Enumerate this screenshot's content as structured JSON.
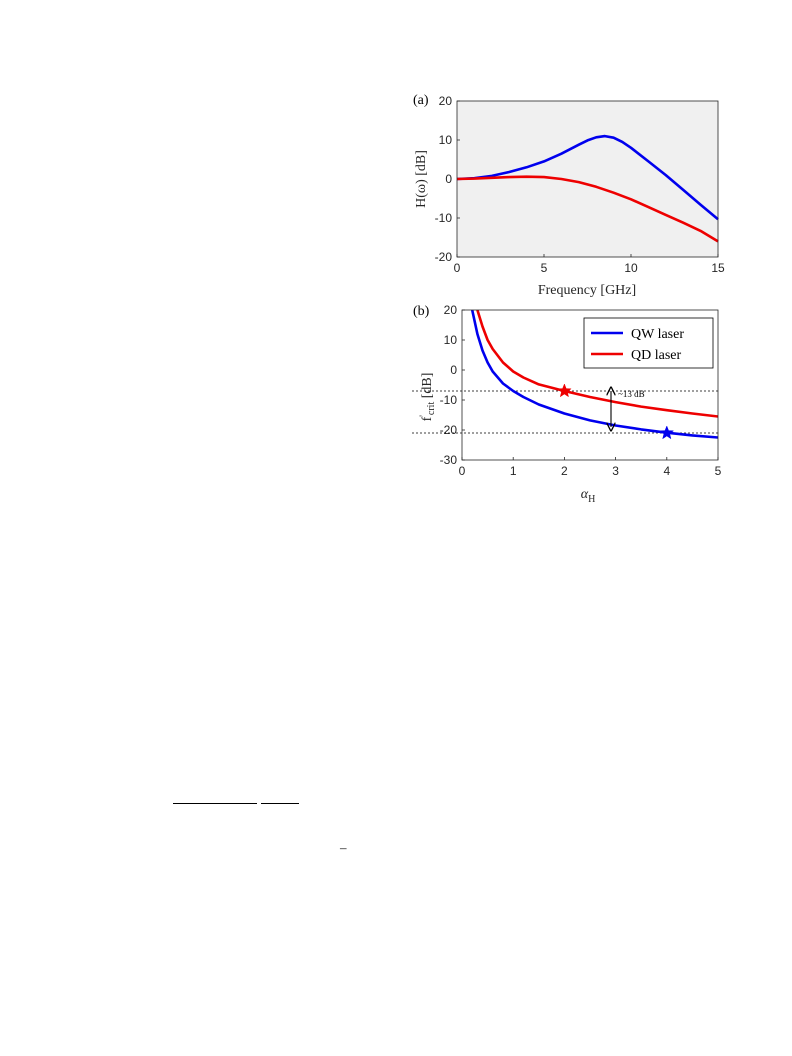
{
  "chart_data": [
    {
      "type": "line",
      "panel_label": "(a)",
      "xlabel": "Frequency [GHz]",
      "ylabel": "H(ω) [dB]",
      "xlim": [
        0,
        15
      ],
      "ylim": [
        -20,
        20
      ],
      "xticks": [
        0,
        5,
        10,
        15
      ],
      "yticks": [
        -20,
        -10,
        0,
        10,
        20
      ],
      "grid": false,
      "background": "#f0f0f0",
      "series": [
        {
          "color": "#0000ee",
          "x": [
            0,
            1,
            2,
            3,
            4,
            5,
            6,
            7,
            7.5,
            8,
            8.5,
            9,
            9.5,
            10,
            11,
            12,
            13,
            14,
            15
          ],
          "y": [
            0,
            0.2,
            0.8,
            1.8,
            3.0,
            4.5,
            6.5,
            8.8,
            9.9,
            10.7,
            11.0,
            10.6,
            9.5,
            8.0,
            4.5,
            1.0,
            -2.8,
            -6.6,
            -10.3
          ]
        },
        {
          "color": "#ee0000",
          "x": [
            0,
            1,
            2,
            3,
            4,
            5,
            6,
            7,
            8,
            9,
            10,
            11,
            12,
            13,
            14,
            15
          ],
          "y": [
            0,
            0.1,
            0.3,
            0.5,
            0.6,
            0.5,
            0,
            -0.8,
            -2.0,
            -3.5,
            -5.2,
            -7.2,
            -9.2,
            -11.2,
            -13.3,
            -16.0
          ]
        }
      ]
    },
    {
      "type": "line",
      "panel_label": "(b)",
      "xlabel": "αH",
      "ylabel": "f'crit [dB]",
      "xlim": [
        0,
        5
      ],
      "ylim": [
        -30,
        20
      ],
      "xticks": [
        0,
        1,
        2,
        3,
        4,
        5
      ],
      "yticks": [
        -30,
        -20,
        -10,
        0,
        10,
        20
      ],
      "grid": false,
      "legend": "top-right",
      "series": [
        {
          "name": "QW laser",
          "color": "#0000ee",
          "x": [
            0.2,
            0.3,
            0.4,
            0.5,
            0.6,
            0.8,
            1.0,
            1.2,
            1.5,
            2.0,
            2.5,
            3.0,
            3.5,
            4.0,
            4.5,
            5.0
          ],
          "y": [
            20,
            12,
            6.5,
            2.5,
            -0.5,
            -4.5,
            -7.0,
            -9.0,
            -11.5,
            -14.5,
            -16.8,
            -18.5,
            -19.8,
            -20.9,
            -21.8,
            -22.5
          ]
        },
        {
          "name": "QD laser",
          "color": "#ee0000",
          "x": [
            0.3,
            0.4,
            0.5,
            0.6,
            0.8,
            1.0,
            1.2,
            1.5,
            2.0,
            2.5,
            3.0,
            3.5,
            4.0,
            4.5,
            5.0
          ],
          "y": [
            20,
            14.5,
            10,
            7,
            2.5,
            -0.5,
            -2.5,
            -4.8,
            -7.0,
            -9.0,
            -10.7,
            -12.2,
            -13.4,
            -14.5,
            -15.5
          ]
        }
      ],
      "markers": [
        {
          "x": 2,
          "y": -7,
          "color": "#ee0000",
          "shape": "star"
        },
        {
          "x": 4,
          "y": -21,
          "color": "#0000ee",
          "shape": "star"
        }
      ],
      "reference_lines": [
        -7,
        -21
      ],
      "annotation": {
        "text": "~13 dB",
        "x": 2.9,
        "y_from": -7,
        "y_to": -21
      }
    }
  ],
  "page_fragment": {
    "dash": "–"
  }
}
